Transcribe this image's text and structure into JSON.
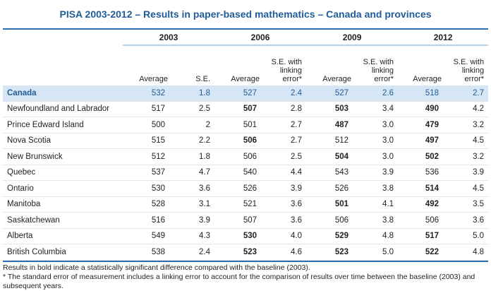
{
  "title": "PISA 2003-2012 – Results in paper-based mathematics – Canada and provinces",
  "years": [
    "2003",
    "2006",
    "2009",
    "2012"
  ],
  "subheaders": {
    "average": "Average",
    "se": "S.E.",
    "se_link_line1": "S.E. with",
    "se_link_line2": "linking",
    "se_link_line3": "error*"
  },
  "rows": [
    {
      "name": "Canada",
      "v": [
        "532",
        "1.8",
        "527",
        "2.4",
        "527",
        "2.6",
        "518",
        "2.7"
      ],
      "bold": [
        false,
        false,
        false,
        false
      ]
    },
    {
      "name": "Newfoundland and Labrador",
      "v": [
        "517",
        "2.5",
        "507",
        "2.8",
        "503",
        "3.4",
        "490",
        "4.2"
      ],
      "bold": [
        false,
        true,
        true,
        true
      ]
    },
    {
      "name": "Prince Edward Island",
      "v": [
        "500",
        "2",
        "501",
        "2.7",
        "487",
        "3.0",
        "479",
        "3.2"
      ],
      "bold": [
        false,
        false,
        true,
        true
      ]
    },
    {
      "name": "Nova Scotia",
      "v": [
        "515",
        "2.2",
        "506",
        "2.7",
        "512",
        "3.0",
        "497",
        "4.5"
      ],
      "bold": [
        false,
        true,
        false,
        true
      ]
    },
    {
      "name": "New Brunswick",
      "v": [
        "512",
        "1.8",
        "506",
        "2.5",
        "504",
        "3.0",
        "502",
        "3.2"
      ],
      "bold": [
        false,
        false,
        true,
        true
      ]
    },
    {
      "name": "Quebec",
      "v": [
        "537",
        "4.7",
        "540",
        "4.4",
        "543",
        "3.9",
        "536",
        "3.9"
      ],
      "bold": [
        false,
        false,
        false,
        false
      ]
    },
    {
      "name": "Ontario",
      "v": [
        "530",
        "3.6",
        "526",
        "3.9",
        "526",
        "3.8",
        "514",
        "4.5"
      ],
      "bold": [
        false,
        false,
        false,
        true
      ]
    },
    {
      "name": "Manitoba",
      "v": [
        "528",
        "3.1",
        "521",
        "3.6",
        "501",
        "4.1",
        "492",
        "3.5"
      ],
      "bold": [
        false,
        false,
        true,
        true
      ]
    },
    {
      "name": "Saskatchewan",
      "v": [
        "516",
        "3.9",
        "507",
        "3.6",
        "506",
        "3.8",
        "506",
        "3.6"
      ],
      "bold": [
        false,
        false,
        false,
        false
      ]
    },
    {
      "name": "Alberta",
      "v": [
        "549",
        "4.3",
        "530",
        "4.0",
        "529",
        "4.8",
        "517",
        "5.0"
      ],
      "bold": [
        false,
        true,
        true,
        true
      ]
    },
    {
      "name": "British Columbia",
      "v": [
        "538",
        "2.4",
        "523",
        "4.6",
        "523",
        "5.0",
        "522",
        "4.8"
      ],
      "bold": [
        false,
        true,
        true,
        true
      ]
    }
  ],
  "notes": {
    "line1": "Results in bold indicate a statistically significant difference compared with the baseline (2003).",
    "line2": "* The standard error of measurement includes a linking error to account for the comparison of results over time between the baseline (2003) and subsequent years."
  }
}
